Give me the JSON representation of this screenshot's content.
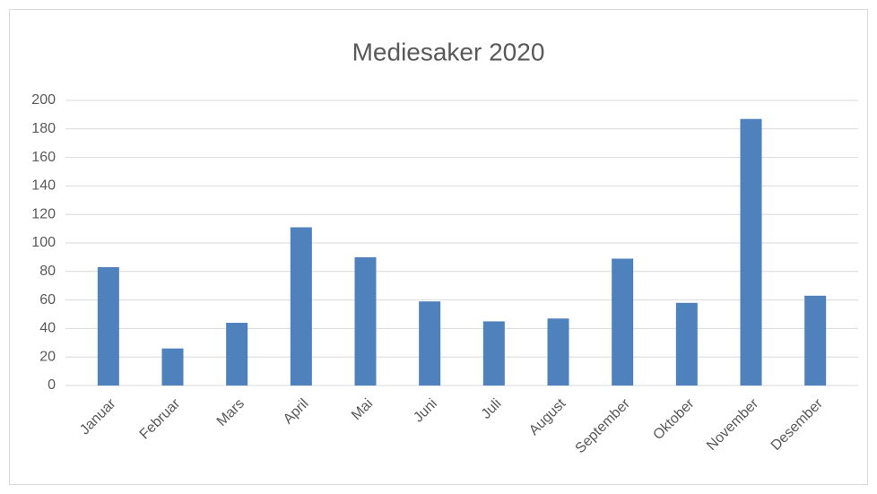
{
  "chart_data": {
    "type": "bar",
    "title": "Mediesaker 2020",
    "categories": [
      "Januar",
      "Februar",
      "Mars",
      "April",
      "Mai",
      "Juni",
      "Juli",
      "August",
      "September",
      "Oktober",
      "November",
      "Desember"
    ],
    "values": [
      83,
      26,
      44,
      111,
      90,
      59,
      45,
      47,
      89,
      58,
      187,
      63
    ],
    "color": "#4f81bd",
    "ylim": [
      0,
      200
    ],
    "yticks": [
      0,
      20,
      40,
      60,
      80,
      100,
      120,
      140,
      160,
      180,
      200
    ],
    "grid": true
  }
}
